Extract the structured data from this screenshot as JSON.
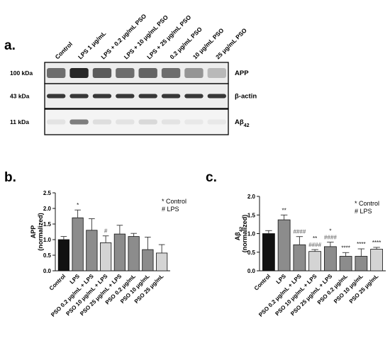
{
  "panels": {
    "a": "a.",
    "b": "b.",
    "c": "c."
  },
  "blot": {
    "lanes": [
      "Control",
      "LPS 1 μg/mL",
      "LPS + 0.2 μg/mL PSO",
      "LPS + 10 μg/mL PSO",
      "LPS + 25 μg/mL PSO",
      "0.2 μg/mL PSO",
      "10 μg/mL PSO",
      "25 μg/mL PSO"
    ],
    "rows": [
      {
        "mw": "100 kDa",
        "protein": "APP"
      },
      {
        "mw": "43 kDa",
        "protein": "β-actin"
      },
      {
        "mw": "11 kDa",
        "protein": "Aβ42"
      }
    ],
    "app_intensity": [
      0.62,
      0.92,
      0.7,
      0.62,
      0.66,
      0.62,
      0.45,
      0.3
    ],
    "actin_intensity": [
      0.85,
      0.85,
      0.85,
      0.85,
      0.85,
      0.85,
      0.85,
      0.85
    ],
    "abeta_intensity": [
      0.12,
      0.55,
      0.14,
      0.12,
      0.16,
      0.12,
      0.1,
      0.1
    ]
  },
  "chart_data": [
    {
      "type": "bar",
      "categories": [
        "Control",
        "LPS",
        "PSO 0.2 μg/mL + LPS",
        "PSO 10 μg/mL + LPS",
        "PSO 25 μg/mL + LPS",
        "PSO 0.2 μg/mL",
        "PSO 10 μg/mL",
        "PSO 25 μg/mL"
      ],
      "values": [
        1.0,
        1.7,
        1.3,
        0.9,
        1.18,
        1.1,
        0.68,
        0.57
      ],
      "errors": [
        0.1,
        0.25,
        0.37,
        0.22,
        0.28,
        0.1,
        0.4,
        0.27
      ],
      "colors": [
        "#111111",
        "#8c8c8c",
        "#8c8c8c",
        "#d4d4d4",
        "#8c8c8c",
        "#8c8c8c",
        "#8c8c8c",
        "#d4d4d4"
      ],
      "significance": [
        "",
        "*",
        "",
        "#",
        "",
        "",
        "",
        ""
      ],
      "ylabel": "APP",
      "ylabel_unit": "(normalized)",
      "ylim": [
        0,
        2.5
      ],
      "yticks": [
        "0.0",
        "0.5",
        "1.0",
        "1.5",
        "2.0",
        "2.5"
      ],
      "legend": [
        "* Control",
        "# LPS"
      ],
      "legend_position": "top-right"
    },
    {
      "type": "bar",
      "categories": [
        "Control",
        "LPS",
        "PSO 0.2 μg/mL + LPS",
        "PSO 10 μg/mL + LPS",
        "PSO 25 μg/mL + LPS",
        "PSO 0.2 μg/mL",
        "PSO 10 μg/mL",
        "PSO 25 μg/mL"
      ],
      "values": [
        1.0,
        1.37,
        0.7,
        0.52,
        0.65,
        0.39,
        0.39,
        0.58
      ],
      "errors": [
        0.08,
        0.13,
        0.22,
        0.05,
        0.12,
        0.1,
        0.2,
        0.05
      ],
      "colors": [
        "#111111",
        "#8c8c8c",
        "#8c8c8c",
        "#d4d4d4",
        "#8c8c8c",
        "#8c8c8c",
        "#8c8c8c",
        "#d4d4d4"
      ],
      "significance": [
        "",
        "**",
        "####",
        "** ####",
        "* ####",
        "****",
        "****",
        "****"
      ],
      "ylabel": "Aβ42",
      "ylabel_unit": "(normalized)",
      "ylim": [
        0,
        2.0
      ],
      "yticks": [
        "0.0",
        "0.5",
        "1.0",
        "1.5",
        "2.0"
      ],
      "legend": [
        "* Control",
        "# LPS"
      ],
      "legend_position": "top-right"
    }
  ]
}
